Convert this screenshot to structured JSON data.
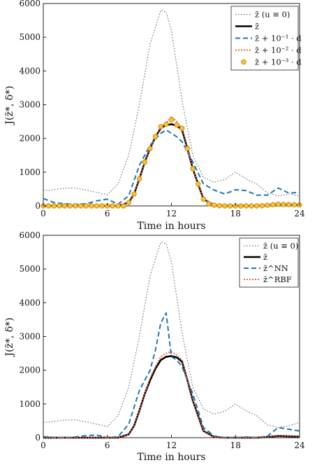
{
  "chart_data": [
    {
      "type": "line",
      "xlabel": "Time in hours",
      "ylabel": "J(z̄*, δ*)",
      "xlim": [
        0,
        24
      ],
      "ylim": [
        0,
        6000
      ],
      "xticks": [
        "0",
        "6",
        "12",
        "18",
        "24"
      ],
      "yticks": [
        "0",
        "1000",
        "2000",
        "3000",
        "4000",
        "5000",
        "6000"
      ],
      "legend_position": "top-right",
      "series": [
        {
          "name": "z̄ (u ≡ 0)",
          "style": "dotted-gray",
          "color": "#555555",
          "x": [
            0,
            1,
            2,
            3,
            4,
            5,
            6,
            7,
            8,
            9,
            10,
            11,
            11.5,
            12,
            13,
            14,
            15,
            16,
            17,
            18,
            19,
            20,
            21,
            22,
            23,
            24
          ],
          "y": [
            450,
            480,
            520,
            530,
            470,
            400,
            330,
            650,
            1500,
            3000,
            4800,
            5800,
            5750,
            5200,
            3100,
            1500,
            850,
            700,
            780,
            1000,
            800,
            650,
            380,
            300,
            350,
            300
          ]
        },
        {
          "name": "z̄",
          "style": "solid-black",
          "color": "#000000",
          "x": [
            0,
            1,
            2,
            3,
            4,
            5,
            6,
            7,
            8,
            8.5,
            9,
            9.5,
            10,
            10.5,
            11,
            11.5,
            12,
            12.5,
            13,
            13.5,
            14,
            14.5,
            15,
            16,
            17,
            18,
            19,
            20,
            21,
            22,
            23,
            24
          ],
          "y": [
            0,
            0,
            0,
            0,
            0,
            0,
            0,
            0,
            100,
            350,
            800,
            1300,
            1700,
            2050,
            2300,
            2400,
            2420,
            2380,
            2250,
            1700,
            1100,
            650,
            200,
            20,
            0,
            0,
            0,
            0,
            20,
            50,
            40,
            30
          ]
        },
        {
          "name": "z̄ + 10⁻¹ · d",
          "style": "dashed-blue",
          "color": "#1f77b4",
          "x": [
            0,
            1,
            2,
            3,
            4,
            5,
            6,
            7,
            8,
            9,
            10,
            11,
            11.5,
            12,
            12.5,
            13,
            14,
            15,
            16,
            17,
            18,
            19,
            20,
            21,
            22,
            23,
            24
          ],
          "y": [
            220,
            100,
            60,
            50,
            60,
            150,
            200,
            50,
            300,
            1200,
            1800,
            2150,
            2250,
            2150,
            2050,
            1900,
            1300,
            650,
            470,
            350,
            480,
            450,
            320,
            320,
            530,
            380,
            400
          ]
        },
        {
          "name": "z̄ + 10⁻² · d",
          "style": "dotted-red",
          "color": "#e4572e",
          "x": [
            0,
            1,
            2,
            3,
            4,
            5,
            6,
            7,
            8,
            8.5,
            9,
            9.5,
            10,
            10.5,
            11,
            11.5,
            12,
            12.5,
            13,
            13.5,
            14,
            14.5,
            15,
            16,
            17,
            18,
            19,
            20,
            21,
            22,
            23,
            24
          ],
          "y": [
            0,
            0,
            0,
            0,
            0,
            0,
            0,
            0,
            100,
            350,
            800,
            1300,
            1700,
            2050,
            2350,
            2450,
            2650,
            2500,
            2300,
            1700,
            1100,
            650,
            200,
            20,
            0,
            0,
            0,
            0,
            20,
            50,
            40,
            30
          ]
        },
        {
          "name": "z̄ + 10⁻³ · d",
          "style": "circle-markers",
          "color": "#f0a500",
          "x": [
            0,
            0.5,
            1,
            1.5,
            2,
            2.5,
            3,
            3.5,
            4,
            4.5,
            5,
            5.5,
            6,
            6.5,
            7,
            7.5,
            8,
            8.5,
            9,
            9.5,
            10,
            10.5,
            11,
            11.5,
            12,
            12.5,
            13,
            13.5,
            14,
            14.5,
            15,
            15.5,
            16,
            16.5,
            17,
            17.5,
            18,
            18.5,
            19,
            19.5,
            20,
            20.5,
            21,
            21.5,
            22,
            22.5,
            23,
            23.5,
            24
          ],
          "y": [
            0,
            0,
            0,
            0,
            0,
            0,
            0,
            0,
            0,
            0,
            0,
            0,
            0,
            0,
            0,
            0,
            100,
            350,
            800,
            1300,
            1700,
            2050,
            2350,
            2420,
            2550,
            2400,
            2300,
            1700,
            1100,
            650,
            200,
            60,
            20,
            5,
            0,
            0,
            0,
            0,
            0,
            0,
            0,
            5,
            20,
            35,
            50,
            45,
            40,
            35,
            30
          ]
        }
      ]
    },
    {
      "type": "line",
      "xlabel": "Time in hours",
      "ylabel": "J(z̄*, δ*)",
      "xlim": [
        0,
        24
      ],
      "ylim": [
        0,
        6000
      ],
      "xticks": [
        "0",
        "6",
        "12",
        "18",
        "24"
      ],
      "yticks": [
        "0",
        "1000",
        "2000",
        "3000",
        "4000",
        "5000",
        "6000"
      ],
      "legend_position": "top-right",
      "series": [
        {
          "name": "z̄ (u ≡ 0)",
          "style": "dotted-gray",
          "color": "#555555",
          "x": [
            0,
            1,
            2,
            3,
            4,
            5,
            6,
            7,
            8,
            9,
            10,
            11,
            11.5,
            12,
            13,
            14,
            15,
            16,
            17,
            18,
            19,
            20,
            21,
            22,
            23,
            24
          ],
          "y": [
            450,
            480,
            520,
            530,
            470,
            400,
            330,
            650,
            1500,
            3000,
            4800,
            5800,
            5750,
            5200,
            3100,
            1500,
            850,
            700,
            780,
            1000,
            800,
            650,
            380,
            300,
            350,
            450
          ]
        },
        {
          "name": "z̄",
          "style": "solid-black",
          "color": "#000000",
          "x": [
            0,
            1,
            2,
            3,
            4,
            5,
            6,
            7,
            8,
            8.5,
            9,
            9.5,
            10,
            10.5,
            11,
            11.5,
            12,
            12.5,
            13,
            13.5,
            14,
            14.5,
            15,
            16,
            17,
            18,
            19,
            20,
            21,
            22,
            23,
            24
          ],
          "y": [
            0,
            0,
            0,
            0,
            0,
            0,
            0,
            0,
            100,
            350,
            800,
            1300,
            1700,
            2050,
            2300,
            2400,
            2420,
            2380,
            2250,
            1700,
            1100,
            650,
            200,
            20,
            0,
            0,
            0,
            0,
            20,
            50,
            40,
            30
          ]
        },
        {
          "name": "z̄^NN",
          "style": "dashed-blue",
          "color": "#1f77b4",
          "x": [
            0,
            1,
            2,
            3,
            4,
            5,
            6,
            7,
            8,
            9,
            10,
            10.5,
            11,
            11.5,
            12,
            12.5,
            13,
            14,
            15,
            16,
            17,
            18,
            19,
            20,
            21,
            22,
            23,
            24
          ],
          "y": [
            30,
            10,
            0,
            20,
            60,
            80,
            0,
            30,
            400,
            1400,
            2000,
            2600,
            3400,
            3700,
            2400,
            2300,
            2100,
            1300,
            300,
            50,
            0,
            0,
            20,
            0,
            50,
            300,
            250,
            200
          ]
        },
        {
          "name": "z̄^RBF",
          "style": "dotted-red",
          "color": "#e4572e",
          "x": [
            0,
            1,
            2,
            3,
            4,
            5,
            6,
            7,
            8,
            8.5,
            9,
            9.5,
            10,
            10.5,
            11,
            11.5,
            12,
            12.5,
            13,
            13.5,
            14,
            14.5,
            15,
            16,
            17,
            18,
            19,
            20,
            21,
            22,
            23,
            24
          ],
          "y": [
            0,
            0,
            0,
            0,
            0,
            0,
            0,
            0,
            100,
            350,
            800,
            1300,
            1750,
            2100,
            2400,
            2500,
            2550,
            2450,
            2300,
            1700,
            1100,
            650,
            200,
            20,
            0,
            0,
            0,
            0,
            20,
            50,
            40,
            30
          ]
        }
      ]
    }
  ]
}
